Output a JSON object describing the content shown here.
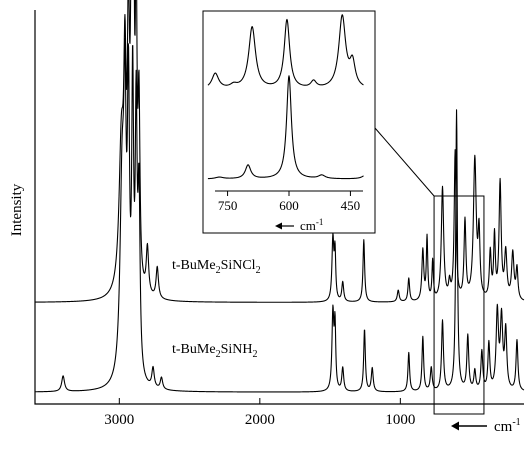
{
  "chart_data": {
    "type": "line",
    "title": "",
    "ylabel": "Intensity",
    "xlabel": "cm",
    "xlabel_superscript": "-1",
    "x_direction": "decreasing (arrow)",
    "x_ticks": [
      3000,
      2000,
      1000
    ],
    "xlim": [
      3600,
      120
    ],
    "grid": false,
    "series": [
      {
        "name": "t-BuMe2SiNCl2",
        "label_parts": {
          "a": "t-BuMe",
          "s1": "2",
          "b": "SiNCl",
          "s2": "2"
        },
        "baseline": 0.25,
        "peaks": [
          [
            2985,
            0.38,
            20
          ],
          [
            2960,
            0.48,
            10
          ],
          [
            2935,
            0.62,
            9
          ],
          [
            2915,
            0.55,
            8
          ],
          [
            2900,
            0.97,
            7
          ],
          [
            2880,
            0.72,
            7
          ],
          [
            2860,
            0.45,
            8
          ],
          [
            2800,
            0.12,
            10
          ],
          [
            2730,
            0.08,
            10
          ],
          [
            1480,
            0.16,
            8
          ],
          [
            1465,
            0.12,
            6
          ],
          [
            1410,
            0.05,
            8
          ],
          [
            1260,
            0.16,
            7
          ],
          [
            1015,
            0.03,
            8
          ],
          [
            940,
            0.06,
            7
          ],
          [
            840,
            0.13,
            8
          ],
          [
            810,
            0.16,
            6
          ],
          [
            770,
            0.1,
            6
          ],
          [
            700,
            0.29,
            10
          ],
          [
            650,
            0.04,
            8
          ],
          [
            610,
            0.38,
            8
          ],
          [
            540,
            0.2,
            8
          ],
          [
            470,
            0.36,
            12
          ],
          [
            440,
            0.16,
            8
          ],
          [
            360,
            0.12,
            8
          ],
          [
            330,
            0.16,
            7
          ],
          [
            290,
            0.3,
            9
          ],
          [
            250,
            0.12,
            10
          ],
          [
            200,
            0.12,
            10
          ],
          [
            170,
            0.08,
            8
          ]
        ]
      },
      {
        "name": "t-BuMe2SiNH2",
        "label_parts": {
          "a": "t-BuMe",
          "s1": "2",
          "b": "SiNH",
          "s2": "2"
        },
        "baseline": 0.02,
        "peaks": [
          [
            3400,
            0.04,
            12
          ],
          [
            2980,
            0.5,
            18
          ],
          [
            2960,
            0.58,
            10
          ],
          [
            2935,
            0.68,
            9
          ],
          [
            2905,
            0.72,
            8
          ],
          [
            2880,
            0.64,
            8
          ],
          [
            2860,
            0.45,
            9
          ],
          [
            2760,
            0.05,
            10
          ],
          [
            2700,
            0.03,
            10
          ],
          [
            1480,
            0.2,
            8
          ],
          [
            1465,
            0.16,
            6
          ],
          [
            1410,
            0.06,
            8
          ],
          [
            1255,
            0.16,
            7
          ],
          [
            1200,
            0.06,
            8
          ],
          [
            940,
            0.1,
            7
          ],
          [
            840,
            0.14,
            7
          ],
          [
            780,
            0.06,
            8
          ],
          [
            700,
            0.18,
            8
          ],
          [
            600,
            0.72,
            7
          ],
          [
            520,
            0.14,
            8
          ],
          [
            470,
            0.05,
            8
          ],
          [
            420,
            0.1,
            8
          ],
          [
            370,
            0.12,
            8
          ],
          [
            310,
            0.2,
            10
          ],
          [
            280,
            0.18,
            10
          ],
          [
            250,
            0.15,
            9
          ],
          [
            170,
            0.13,
            8
          ]
        ]
      }
    ],
    "highlight_region": [
      760,
      405
    ],
    "inset": {
      "xlim": [
        810,
        390
      ],
      "x_ticks": [
        750,
        600,
        450
      ],
      "xlabel": "cm",
      "xlabel_superscript": "-1",
      "series": [
        {
          "name": "t-BuMe2SiNCl2",
          "baseline": 0.56,
          "peaks": [
            [
              780,
              0.09,
              10
            ],
            [
              735,
              0.02,
              10
            ],
            [
              690,
              0.36,
              10
            ],
            [
              625,
              0.0,
              8
            ],
            [
              605,
              0.4,
              8
            ],
            [
              540,
              0.04,
              8
            ],
            [
              470,
              0.42,
              10
            ],
            [
              445,
              0.14,
              8
            ]
          ]
        },
        {
          "name": "t-BuMe2SiNH2",
          "baseline": 0.04,
          "peaks": [
            [
              770,
              0.01,
              12
            ],
            [
              700,
              0.08,
              8
            ],
            [
              600,
              0.6,
              7
            ],
            [
              520,
              0.02,
              10
            ],
            [
              410,
              0.03,
              10
            ]
          ]
        }
      ]
    }
  }
}
